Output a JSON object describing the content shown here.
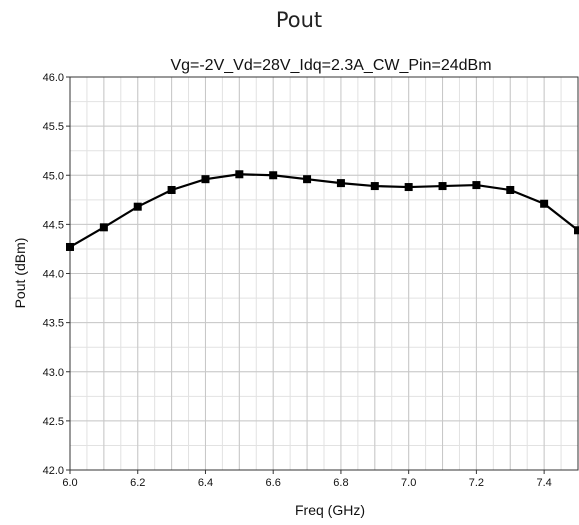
{
  "page_heading": "Pout",
  "chart_data": {
    "type": "line",
    "title": "Vg=-2V_Vd=28V_Idq=2.3A_CW_Pin=24dBm",
    "xlabel": "Freq (GHz)",
    "ylabel": "Pout (dBm)",
    "xlim": [
      6.0,
      7.5
    ],
    "ylim": [
      42.0,
      46.0
    ],
    "xticks": [
      6.0,
      6.2,
      6.4,
      6.6,
      6.8,
      7.0,
      7.2,
      7.4
    ],
    "xtick_labels": [
      "6.0",
      "6.2",
      "6.4",
      "6.6",
      "6.8",
      "7.0",
      "7.2",
      "7.4"
    ],
    "yticks": [
      42.0,
      42.5,
      43.0,
      43.5,
      44.0,
      44.5,
      45.0,
      45.5,
      46.0
    ],
    "ytick_labels": [
      "42.0",
      "42.5",
      "43.0",
      "43.5",
      "44.0",
      "44.5",
      "45.0",
      "45.5",
      "46.0"
    ],
    "grid": true,
    "minor_grid": true,
    "legend": "none",
    "series": [
      {
        "color": "#000000",
        "marker": "square",
        "x": [
          6.0,
          6.1,
          6.2,
          6.3,
          6.4,
          6.5,
          6.6,
          6.7,
          6.8,
          6.9,
          7.0,
          7.1,
          7.2,
          7.3,
          7.4,
          7.5
        ],
        "y": [
          44.27,
          44.47,
          44.68,
          44.85,
          44.96,
          45.01,
          45.0,
          44.96,
          44.92,
          44.89,
          44.88,
          44.89,
          44.9,
          44.85,
          44.71,
          44.44
        ]
      }
    ]
  }
}
